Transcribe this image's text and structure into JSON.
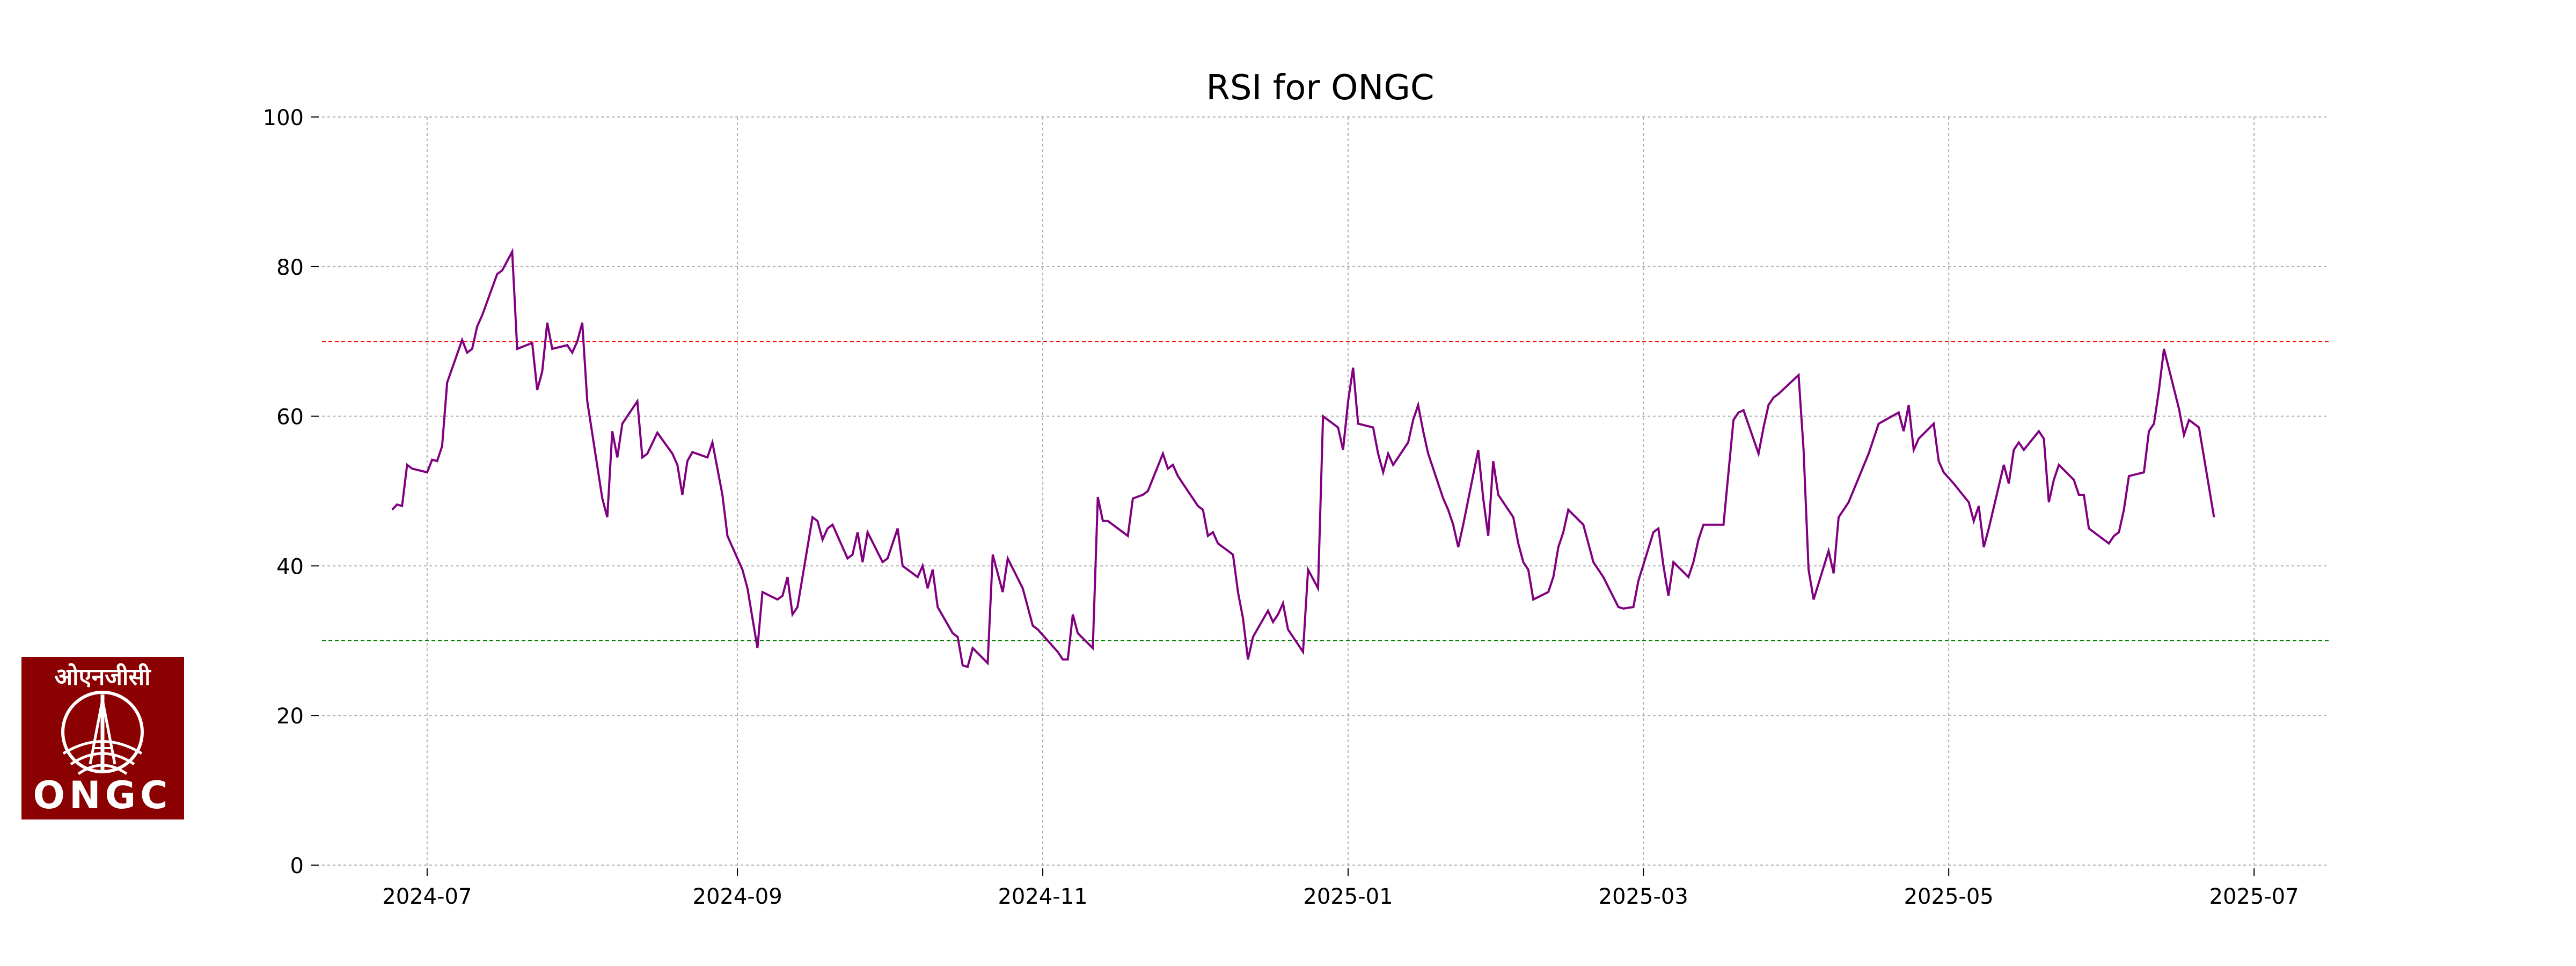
{
  "chart_data": {
    "type": "line",
    "title": "RSI for ONGC",
    "xlabel": "",
    "ylabel": "",
    "ylim": [
      0,
      100
    ],
    "xlim": [
      "2024-06-10",
      "2025-07-16"
    ],
    "yticks": [
      0,
      20,
      40,
      60,
      80,
      100
    ],
    "xticks": [
      "2024-07",
      "2024-09",
      "2024-11",
      "2025-01",
      "2025-03",
      "2025-05",
      "2025-07"
    ],
    "grid": true,
    "legend": "none",
    "series": [
      {
        "color": "#800080",
        "x": [
          "2024-06-24",
          "2024-06-25",
          "2024-06-26",
          "2024-06-27",
          "2024-06-28",
          "2024-07-01",
          "2024-07-02",
          "2024-07-03",
          "2024-07-04",
          "2024-07-05",
          "2024-07-08",
          "2024-07-09",
          "2024-07-10",
          "2024-07-11",
          "2024-07-12",
          "2024-07-15",
          "2024-07-16",
          "2024-07-18",
          "2024-07-19",
          "2024-07-22",
          "2024-07-23",
          "2024-07-24",
          "2024-07-25",
          "2024-07-26",
          "2024-07-29",
          "2024-07-30",
          "2024-07-31",
          "2024-08-01",
          "2024-08-02",
          "2024-08-05",
          "2024-08-06",
          "2024-08-07",
          "2024-08-08",
          "2024-08-09",
          "2024-08-12",
          "2024-08-13",
          "2024-08-14",
          "2024-08-16",
          "2024-08-19",
          "2024-08-20",
          "2024-08-21",
          "2024-08-22",
          "2024-08-23",
          "2024-08-26",
          "2024-08-27",
          "2024-08-28",
          "2024-08-29",
          "2024-08-30",
          "2024-09-02",
          "2024-09-03",
          "2024-09-04",
          "2024-09-05",
          "2024-09-06",
          "2024-09-09",
          "2024-09-10",
          "2024-09-11",
          "2024-09-12",
          "2024-09-13",
          "2024-09-16",
          "2024-09-17",
          "2024-09-18",
          "2024-09-19",
          "2024-09-20",
          "2024-09-23",
          "2024-09-24",
          "2024-09-25",
          "2024-09-26",
          "2024-09-27",
          "2024-09-30",
          "2024-10-01",
          "2024-10-03",
          "2024-10-04",
          "2024-10-07",
          "2024-10-08",
          "2024-10-09",
          "2024-10-10",
          "2024-10-11",
          "2024-10-14",
          "2024-10-15",
          "2024-10-16",
          "2024-10-17",
          "2024-10-18",
          "2024-10-21",
          "2024-10-22",
          "2024-10-23",
          "2024-10-24",
          "2024-10-25",
          "2024-10-28",
          "2024-10-29",
          "2024-10-30",
          "2024-10-31",
          "2024-11-04",
          "2024-11-05",
          "2024-11-06",
          "2024-11-07",
          "2024-11-08",
          "2024-11-11",
          "2024-11-12",
          "2024-11-13",
          "2024-11-14",
          "2024-11-18",
          "2024-11-19",
          "2024-11-21",
          "2024-11-22",
          "2024-11-25",
          "2024-11-26",
          "2024-11-27",
          "2024-11-28",
          "2024-11-29",
          "2024-12-02",
          "2024-12-03",
          "2024-12-04",
          "2024-12-05",
          "2024-12-06",
          "2024-12-09",
          "2024-12-10",
          "2024-12-11",
          "2024-12-12",
          "2024-12-13",
          "2024-12-16",
          "2024-12-17",
          "2024-12-18",
          "2024-12-19",
          "2024-12-20",
          "2024-12-23",
          "2024-12-24",
          "2024-12-26",
          "2024-12-27",
          "2024-12-30",
          "2024-12-31",
          "2025-01-01",
          "2025-01-02",
          "2025-01-03",
          "2025-01-06",
          "2025-01-07",
          "2025-01-08",
          "2025-01-09",
          "2025-01-10",
          "2025-01-13",
          "2025-01-14",
          "2025-01-15",
          "2025-01-16",
          "2025-01-17",
          "2025-01-20",
          "2025-01-21",
          "2025-01-22",
          "2025-01-23",
          "2025-01-24",
          "2025-01-27",
          "2025-01-28",
          "2025-01-29",
          "2025-01-30",
          "2025-01-31",
          "2025-02-03",
          "2025-02-04",
          "2025-02-05",
          "2025-02-06",
          "2025-02-07",
          "2025-02-10",
          "2025-02-11",
          "2025-02-12",
          "2025-02-13",
          "2025-02-14",
          "2025-02-17",
          "2025-02-18",
          "2025-02-19",
          "2025-02-20",
          "2025-02-21",
          "2025-02-24",
          "2025-02-25",
          "2025-02-27",
          "2025-02-28",
          "2025-03-03",
          "2025-03-04",
          "2025-03-05",
          "2025-03-06",
          "2025-03-07",
          "2025-03-10",
          "2025-03-11",
          "2025-03-12",
          "2025-03-13",
          "2025-03-17",
          "2025-03-18",
          "2025-03-19",
          "2025-03-20",
          "2025-03-21",
          "2025-03-24",
          "2025-03-25",
          "2025-03-26",
          "2025-03-27",
          "2025-03-28",
          "2025-04-01",
          "2025-04-02",
          "2025-04-03",
          "2025-04-04",
          "2025-04-07",
          "2025-04-08",
          "2025-04-09",
          "2025-04-11",
          "2025-04-15",
          "2025-04-16",
          "2025-04-17",
          "2025-04-21",
          "2025-04-22",
          "2025-04-23",
          "2025-04-24",
          "2025-04-25",
          "2025-04-28",
          "2025-04-29",
          "2025-04-30",
          "2025-05-02",
          "2025-05-05",
          "2025-05-06",
          "2025-05-07",
          "2025-05-08",
          "2025-05-09",
          "2025-05-12",
          "2025-05-13",
          "2025-05-14",
          "2025-05-15",
          "2025-05-16",
          "2025-05-19",
          "2025-05-20",
          "2025-05-21",
          "2025-05-22",
          "2025-05-23",
          "2025-05-26",
          "2025-05-27",
          "2025-05-28",
          "2025-05-29",
          "2025-05-30",
          "2025-06-02",
          "2025-06-03",
          "2025-06-04",
          "2025-06-05",
          "2025-06-06",
          "2025-06-09",
          "2025-06-10",
          "2025-06-11",
          "2025-06-12",
          "2025-06-13",
          "2025-06-16",
          "2025-06-17",
          "2025-06-18",
          "2025-06-19",
          "2025-06-20",
          "2025-06-23"
        ],
        "values": [
          47.5,
          48.2,
          48.0,
          53.5,
          53.0,
          52.5,
          54.2,
          54.0,
          56.0,
          64.5,
          70.2,
          68.5,
          69.0,
          72.0,
          73.5,
          79.0,
          79.5,
          82.0,
          69.0,
          69.8,
          63.5,
          66.0,
          72.5,
          69.0,
          69.5,
          68.5,
          70.0,
          72.5,
          62.0,
          49.0,
          46.5,
          58.0,
          54.5,
          59.0,
          62.0,
          54.5,
          55.0,
          57.8,
          55.0,
          53.5,
          49.5,
          54.0,
          55.2,
          54.5,
          56.5,
          53.0,
          49.5,
          44.0,
          39.5,
          37.0,
          33.0,
          29.0,
          36.5,
          35.5,
          36.0,
          38.5,
          33.5,
          34.5,
          46.5,
          46.0,
          43.5,
          45.0,
          45.5,
          41.0,
          41.5,
          44.5,
          40.5,
          44.5,
          40.5,
          41.0,
          45.0,
          40.0,
          38.5,
          40.0,
          37.0,
          39.5,
          34.5,
          31.0,
          30.5,
          26.7,
          26.5,
          29.0,
          27.0,
          41.5,
          39.0,
          36.5,
          41.0,
          37.0,
          34.5,
          32.0,
          31.5,
          28.5,
          27.5,
          27.5,
          33.5,
          31.0,
          29.0,
          49.2,
          46.0,
          46.0,
          44.0,
          49.0,
          49.5,
          50.0,
          55.0,
          53.0,
          53.5,
          52.0,
          51.0,
          48.0,
          47.5,
          44.0,
          44.5,
          43.0,
          41.5,
          36.5,
          33.0,
          27.5,
          30.5,
          34.0,
          32.5,
          33.5,
          35.0,
          31.5,
          28.5,
          39.5,
          37.0,
          60.0,
          58.5,
          55.5,
          62.0,
          66.5,
          59.0,
          58.5,
          55.0,
          52.5,
          55.0,
          53.5,
          56.5,
          59.5,
          61.5,
          58.0,
          55.0,
          49.0,
          47.5,
          45.5,
          42.5,
          45.5,
          55.5,
          49.0,
          44.0,
          54.0,
          49.5,
          46.5,
          43.0,
          40.5,
          39.5,
          35.5,
          36.5,
          38.5,
          42.5,
          44.5,
          47.5,
          45.5,
          43.0,
          40.5,
          39.5,
          38.5,
          34.5,
          34.3,
          34.5,
          38.0,
          44.5,
          45.0,
          40.0,
          36.0,
          40.5,
          38.5,
          40.5,
          43.5,
          45.5,
          45.5,
          52.5,
          59.5,
          60.5,
          60.8,
          55.0,
          58.5,
          61.5,
          62.5,
          63.0,
          65.5,
          55.5,
          39.5,
          35.5,
          42.0,
          39.0,
          46.5,
          48.5,
          55.0,
          57.0,
          59.0,
          60.5,
          58.0,
          61.5,
          55.5,
          57.0,
          59.0,
          54.0,
          52.5,
          51.0,
          48.5,
          46.0,
          48.0,
          42.5,
          45.0,
          53.5,
          51.0,
          55.5,
          56.5,
          55.5,
          58.0,
          57.0,
          48.5,
          51.5,
          53.5,
          51.5,
          49.5,
          49.5,
          45.0,
          44.5,
          43.0,
          44.0,
          44.5,
          47.5,
          52.0,
          52.5,
          58.0,
          59.0,
          63.5,
          69.0,
          61.0,
          57.5,
          59.5,
          59.0,
          58.5,
          46.5
        ]
      }
    ],
    "reference_lines": [
      {
        "y": 70,
        "color": "#ff0000",
        "style": "dashed"
      },
      {
        "y": 30,
        "color": "#008000",
        "style": "dashed"
      }
    ]
  },
  "logo": {
    "hindi_text": "ओएनजीसी",
    "english_text": "ONGC",
    "background": "#8b0000"
  }
}
